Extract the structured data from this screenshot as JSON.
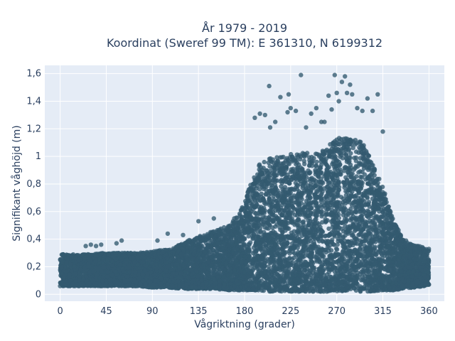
{
  "chart_data": {
    "type": "scatter",
    "title_line1": "År 1979 - 2019",
    "title_line2": "Koordinat (Sweref 99 TM): E 361310, N 6199312",
    "xlabel": "Vågriktning (grader)",
    "ylabel": "Signifikant våghöjd (m)",
    "xlim": [
      -15,
      375
    ],
    "ylim": [
      -0.05,
      1.66
    ],
    "x_ticks": [
      0,
      45,
      90,
      135,
      180,
      225,
      270,
      315,
      360
    ],
    "x_tick_labels": [
      "0",
      "45",
      "90",
      "135",
      "180",
      "225",
      "270",
      "315",
      "360"
    ],
    "y_ticks": [
      0,
      0.2,
      0.4,
      0.6,
      0.8,
      1.0,
      1.2,
      1.4,
      1.6
    ],
    "y_tick_labels": [
      "0",
      "0,2",
      "0,4",
      "0,6",
      "0,8",
      "1",
      "1,2",
      "1,4",
      "1,6"
    ],
    "grid": true,
    "marker_color": "#335a70",
    "plot_bg": "#e5ecf6",
    "envelope": {
      "direction_deg": [
        0,
        15,
        30,
        45,
        60,
        75,
        90,
        105,
        120,
        135,
        150,
        165,
        175,
        185,
        195,
        205,
        215,
        225,
        235,
        245,
        255,
        265,
        275,
        285,
        295,
        305,
        315,
        325,
        335,
        345,
        355,
        360
      ],
      "lower_m": [
        0.06,
        0.06,
        0.06,
        0.06,
        0.06,
        0.06,
        0.05,
        0.05,
        0.04,
        0.04,
        0.04,
        0.03,
        0.03,
        0.03,
        0.03,
        0.02,
        0.02,
        0.02,
        0.02,
        0.02,
        0.02,
        0.02,
        0.02,
        0.02,
        0.02,
        0.02,
        0.03,
        0.03,
        0.04,
        0.05,
        0.06,
        0.07
      ],
      "upper_m": [
        0.29,
        0.29,
        0.29,
        0.3,
        0.3,
        0.3,
        0.31,
        0.33,
        0.38,
        0.42,
        0.46,
        0.5,
        0.58,
        0.78,
        0.95,
        1.0,
        1.0,
        1.02,
        1.03,
        1.02,
        1.04,
        1.1,
        1.15,
        1.15,
        1.1,
        0.95,
        0.78,
        0.55,
        0.4,
        0.36,
        0.34,
        0.33
      ]
    },
    "outliers": {
      "x": [
        25,
        30,
        35,
        40,
        55,
        60,
        95,
        105,
        120,
        135,
        150,
        170,
        190,
        195,
        200,
        204,
        205,
        210,
        215,
        222,
        223,
        225,
        230,
        235,
        240,
        245,
        250,
        255,
        258,
        262,
        265,
        268,
        270,
        272,
        275,
        278,
        280,
        283,
        285,
        290,
        295,
        300,
        305,
        310,
        315
      ],
      "y": [
        0.35,
        0.36,
        0.35,
        0.36,
        0.37,
        0.39,
        0.39,
        0.44,
        0.43,
        0.53,
        0.55,
        0.55,
        1.28,
        1.31,
        1.3,
        1.51,
        1.21,
        1.25,
        1.43,
        1.32,
        1.45,
        1.35,
        1.33,
        1.59,
        1.21,
        1.31,
        1.35,
        1.25,
        1.25,
        1.44,
        1.34,
        1.59,
        1.46,
        1.4,
        1.54,
        1.58,
        1.46,
        1.52,
        1.45,
        1.35,
        1.33,
        1.42,
        1.33,
        1.45,
        1.18
      ]
    },
    "counts": {
      "core_points": 9000,
      "seed": 7
    }
  }
}
